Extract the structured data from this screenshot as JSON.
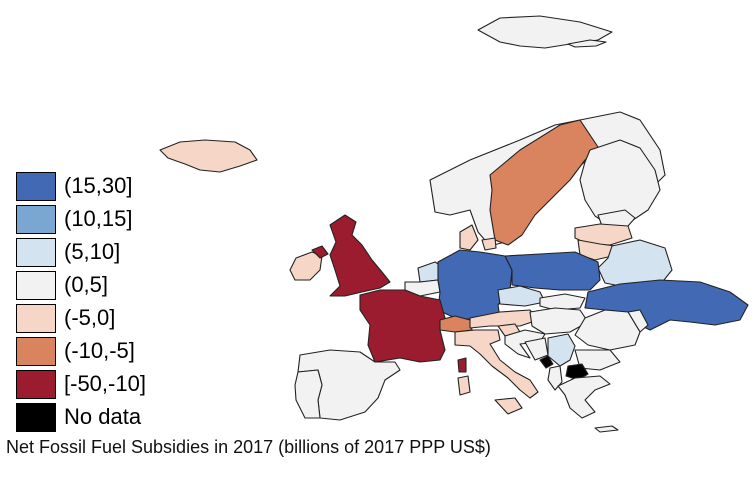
{
  "colors": {
    "c15_30": "#4169b4",
    "c10_15": "#7aa6d2",
    "c5_10": "#d4e3f0",
    "c0_5": "#f2f2f2",
    "cm5_0": "#f6d6c6",
    "cm10_m5": "#d9845e",
    "cm50_m10": "#9b1c2e",
    "nodata": "#000000"
  },
  "legend": {
    "items": [
      {
        "label": "(15,30]",
        "color": "#4169b4"
      },
      {
        "label": "(10,15]",
        "color": "#7aa6d2"
      },
      {
        "label": "(5,10]",
        "color": "#d4e3f0"
      },
      {
        "label": "(0,5]",
        "color": "#f2f2f2"
      },
      {
        "label": "(-5,0]",
        "color": "#f6d6c6"
      },
      {
        "label": "(-10,-5]",
        "color": "#d9845e"
      },
      {
        "label": "[-50,-10]",
        "color": "#9b1c2e"
      },
      {
        "label": "No data",
        "color": "#000000"
      }
    ]
  },
  "caption": "Net Fossil Fuel Subsidies in 2017 (billions of 2017 PPP US$)"
}
